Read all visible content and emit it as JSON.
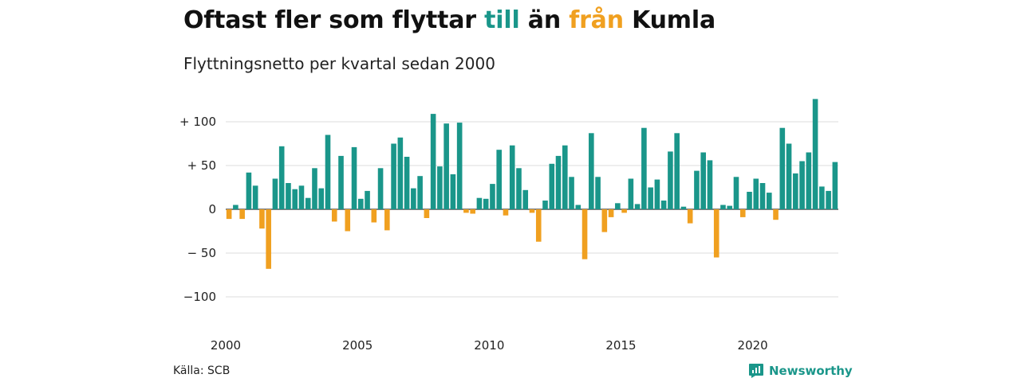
{
  "title": {
    "part1": "Oftast fler som flyttar ",
    "word_in": "till",
    "part2": " än ",
    "word_out": "från",
    "part3": " Kumla"
  },
  "subtitle": "Flyttningsnetto per kvartal sedan 2000",
  "source": "Källa: SCB",
  "logo": {
    "text": "Newsworthy",
    "icon": "newsworthy-chart-bubble-icon"
  },
  "colors": {
    "positive": "#1a968a",
    "negative": "#f0a020",
    "grid": "#dddddd",
    "zero": "#333333"
  },
  "chart_data": {
    "type": "bar",
    "title": "Oftast fler som flyttar till än från Kumla",
    "subtitle": "Flyttningsnetto per kvartal sedan 2000",
    "xlabel": "",
    "ylabel": "",
    "ylim": [
      -115,
      125
    ],
    "yticks": [
      100,
      50,
      0,
      -50,
      -100
    ],
    "ytick_labels": [
      "+ 100",
      "+  50",
      "0",
      "− 50",
      "−100"
    ],
    "xticks": [
      2000,
      2005,
      2010,
      2015,
      2020
    ],
    "xtick_labels": [
      "2000",
      "2005",
      "2010",
      "2015",
      "2020"
    ],
    "grid": true,
    "start": "2000 Q1",
    "values": [
      -11,
      5,
      -11,
      42,
      27,
      -22,
      -68,
      35,
      72,
      30,
      23,
      27,
      13,
      47,
      24,
      85,
      -14,
      61,
      -25,
      71,
      12,
      21,
      -15,
      47,
      -24,
      75,
      82,
      60,
      24,
      38,
      -10,
      109,
      49,
      98,
      40,
      99,
      -4,
      -5,
      13,
      12,
      29,
      68,
      -7,
      73,
      47,
      22,
      -4,
      -37,
      10,
      52,
      61,
      73,
      37,
      5,
      -57,
      87,
      37,
      -26,
      -9,
      7,
      -4,
      35,
      6,
      93,
      25,
      34,
      10,
      66,
      87,
      3,
      -16,
      44,
      65,
      56,
      -55,
      5,
      4,
      37,
      -9,
      20,
      35,
      30,
      19,
      -12,
      93,
      75,
      41,
      55,
      65,
      126,
      26,
      21,
      54
    ]
  }
}
